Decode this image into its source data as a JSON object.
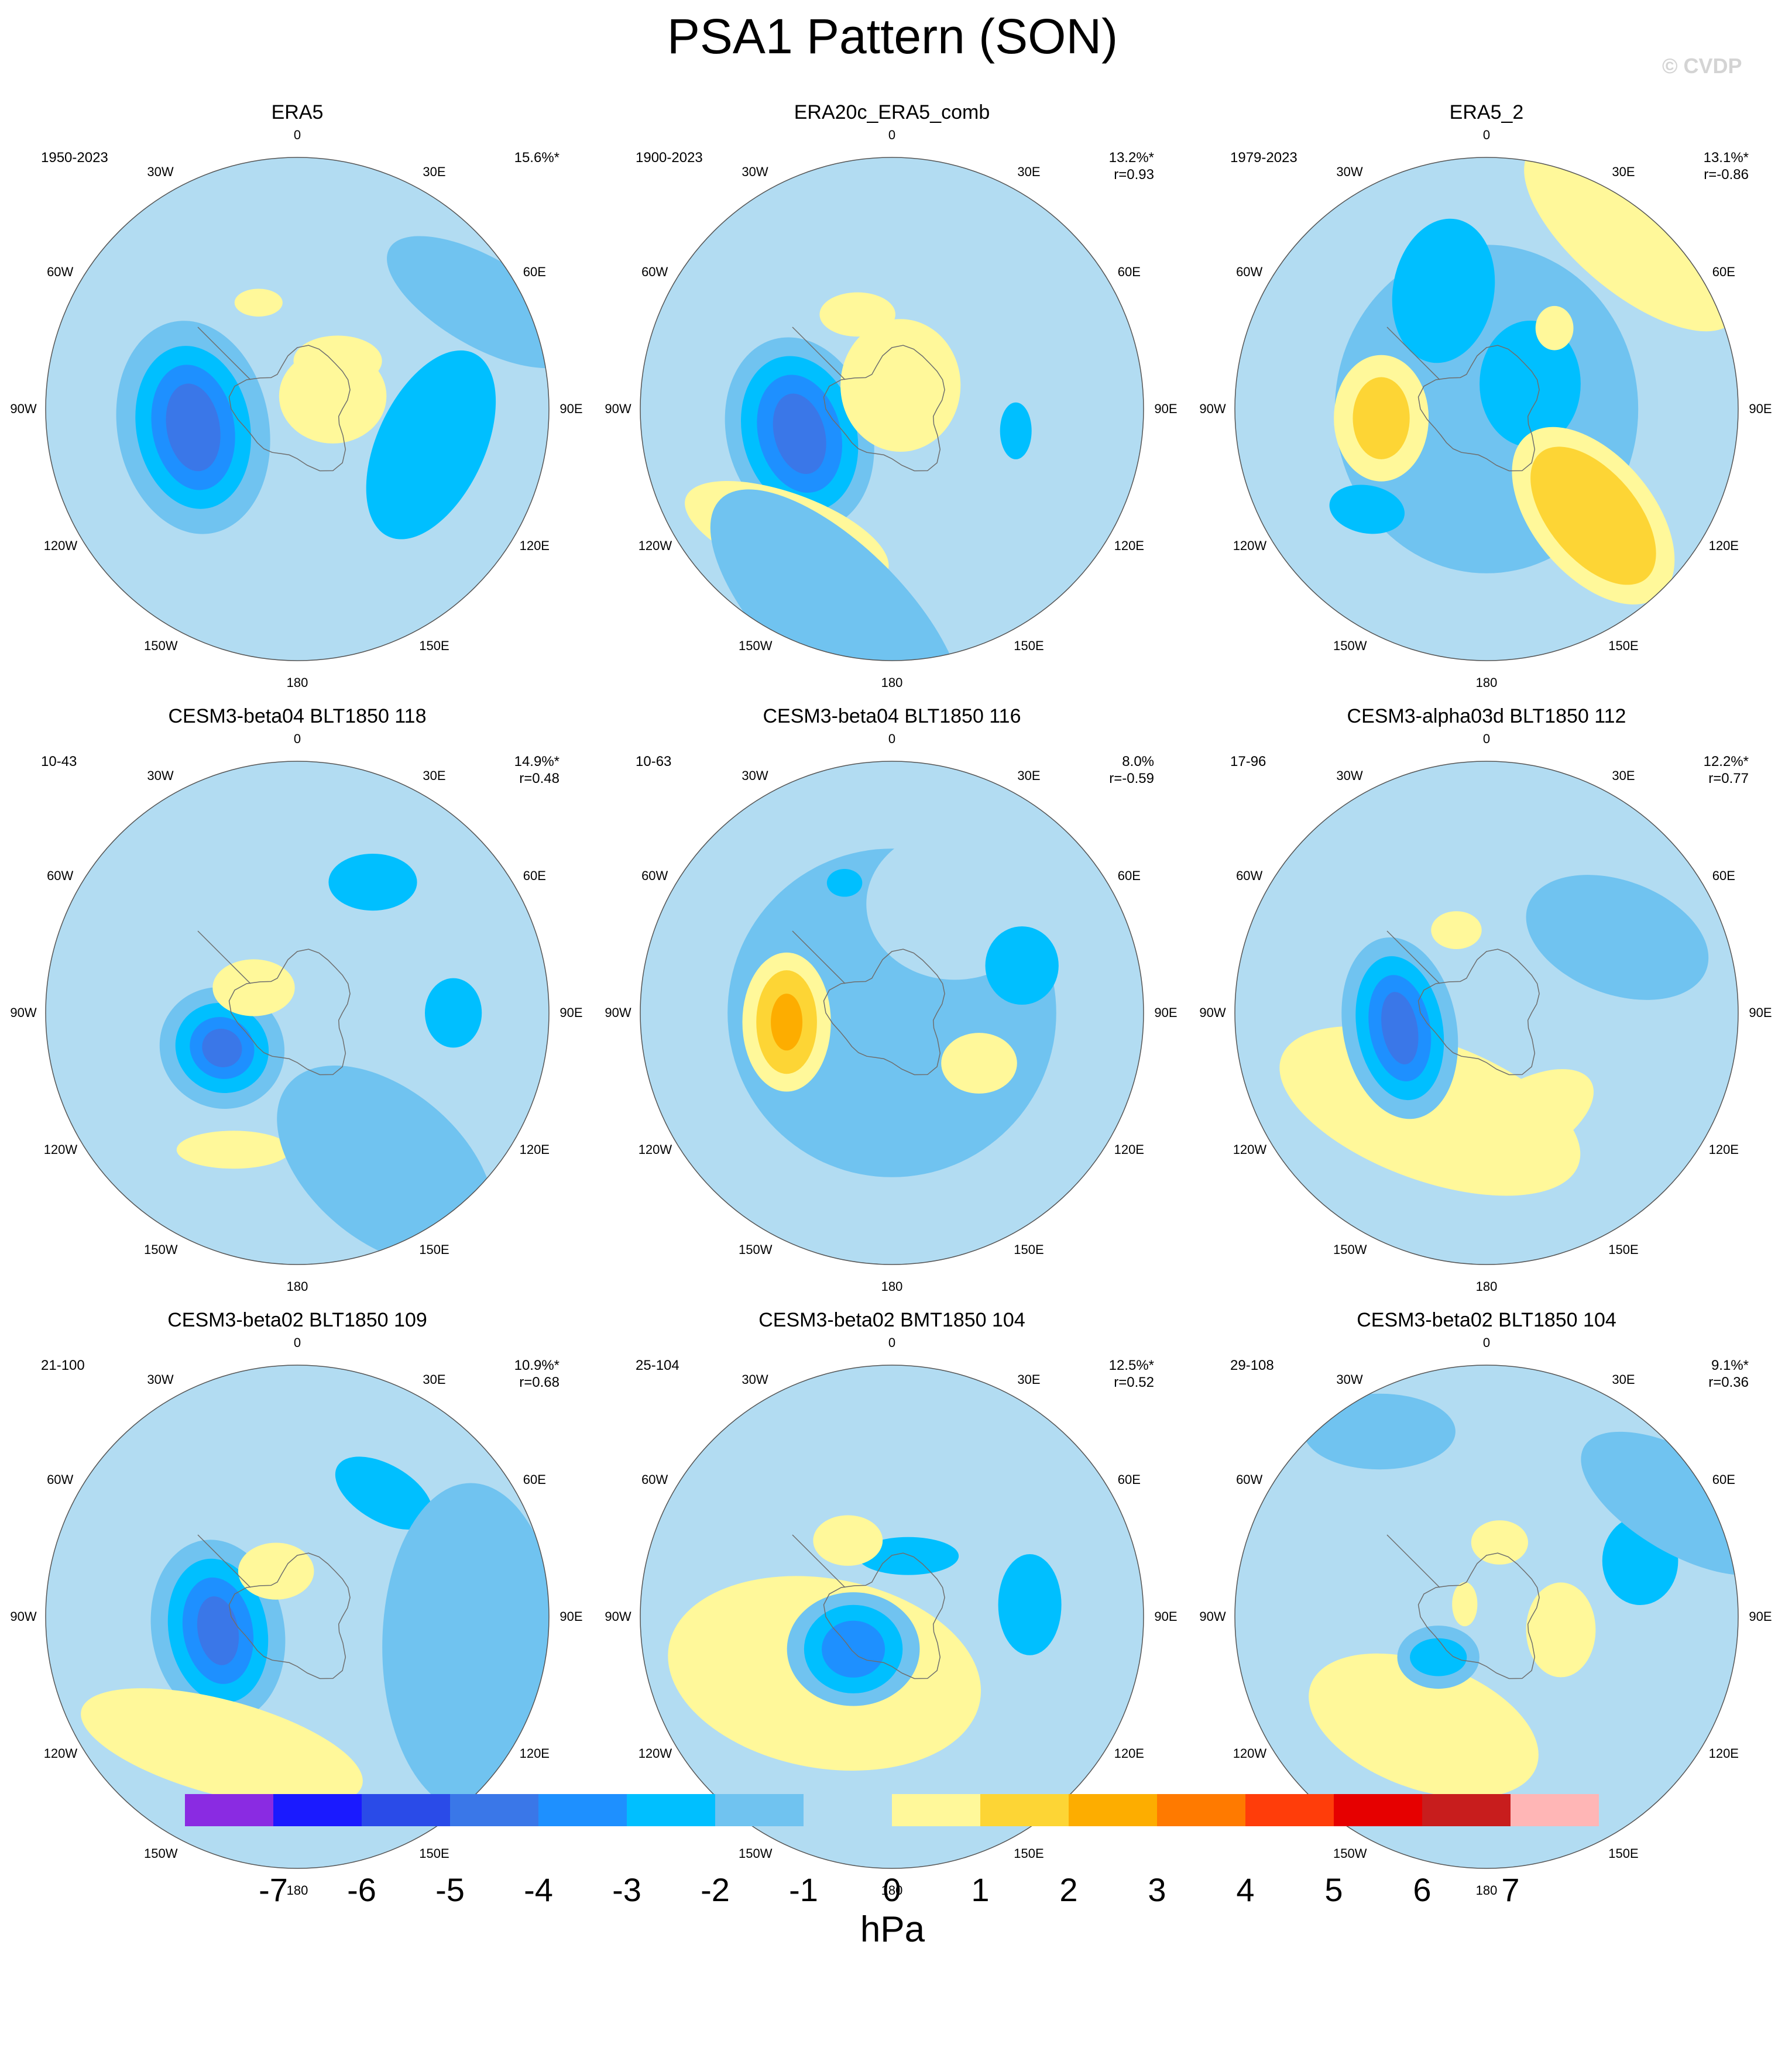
{
  "title": "PSA1 Pattern (SON)",
  "watermark": "© CVDP",
  "longitude_labels": [
    "0",
    "30E",
    "60E",
    "90E",
    "120E",
    "150E",
    "180",
    "150W",
    "120W",
    "90W",
    "60W",
    "30W"
  ],
  "chart_data": {
    "type": "polar-contour-map",
    "projection": "south polar stereographic",
    "variable": "sea level pressure pattern",
    "units": "hPa",
    "colorbar": {
      "ticks": [
        "-7",
        "-6",
        "-5",
        "-4",
        "-3",
        "-2",
        "-1",
        "0",
        "1",
        "2",
        "3",
        "4",
        "5",
        "6",
        "7"
      ],
      "colors": [
        "#8a2be2",
        "#1a1aff",
        "#2a4be8",
        "#3a77e8",
        "#1e90ff",
        "#00bfff",
        "#70c3f0",
        "#b2dcf2",
        "#fff89a",
        "#fdd535",
        "#fdad00",
        "#ff7a00",
        "#ff3d0a",
        "#e60000",
        "#c81d1d",
        "#ffb6b6"
      ]
    },
    "panels": [
      {
        "title": "ERA5",
        "period": "1950-2023",
        "pct": "15.6%*",
        "corr": "",
        "features": [
          {
            "lon": -100,
            "r": 0.42,
            "sx": 120,
            "sy": 170,
            "rot": -10,
            "val": -1
          },
          {
            "lon": -100,
            "r": 0.42,
            "sx": 90,
            "sy": 130,
            "rot": -10,
            "val": -2
          },
          {
            "lon": -100,
            "r": 0.42,
            "sx": 65,
            "sy": 100,
            "rot": -10,
            "val": -3
          },
          {
            "lon": -100,
            "r": 0.42,
            "sx": 42,
            "sy": 70,
            "rot": -10,
            "val": -4
          },
          {
            "lon": 70,
            "r": 0.15,
            "sx": 85,
            "sy": 75,
            "rot": 0,
            "val": 1
          },
          {
            "lon": -20,
            "r": 0.45,
            "sx": 38,
            "sy": 22,
            "rot": 0,
            "val": 1
          },
          {
            "lon": 60,
            "r": 0.85,
            "sx": 170,
            "sy": 70,
            "rot": 30,
            "val": -1
          },
          {
            "lon": 105,
            "r": 0.55,
            "sx": 85,
            "sy": 160,
            "rot": 25,
            "val": -2
          },
          {
            "lon": 40,
            "r": 0.25,
            "sx": 70,
            "sy": 40,
            "rot": 0,
            "val": 1
          }
        ]
      },
      {
        "title": "ERA20c_ERA5_comb",
        "period": "1900-2023",
        "pct": "13.2%*",
        "corr": "r=0.93",
        "features": [
          {
            "lon": -105,
            "r": 0.38,
            "sx": 115,
            "sy": 155,
            "rot": -15,
            "val": -1
          },
          {
            "lon": -105,
            "r": 0.38,
            "sx": 90,
            "sy": 125,
            "rot": -15,
            "val": -2
          },
          {
            "lon": -105,
            "r": 0.38,
            "sx": 65,
            "sy": 95,
            "rot": -15,
            "val": -3
          },
          {
            "lon": -105,
            "r": 0.38,
            "sx": 40,
            "sy": 65,
            "rot": -15,
            "val": -4
          },
          {
            "lon": -140,
            "r": 0.65,
            "sx": 170,
            "sy": 65,
            "rot": 20,
            "val": 1
          },
          {
            "lon": 20,
            "r": 0.1,
            "sx": 95,
            "sy": 105,
            "rot": 0,
            "val": 1
          },
          {
            "lon": -20,
            "r": 0.4,
            "sx": 60,
            "sy": 35,
            "rot": 0,
            "val": 1
          },
          {
            "lon": 100,
            "r": 0.5,
            "sx": 25,
            "sy": 45,
            "rot": 0,
            "val": -2
          },
          {
            "lon": 60,
            "r": 0.8,
            "sx": 80,
            "sy": 95,
            "rot": 0,
            "val": 0
          },
          {
            "lon": -165,
            "r": 0.85,
            "sx": 260,
            "sy": 110,
            "rot": 45,
            "val": -1
          }
        ]
      },
      {
        "title": "ERA5_2",
        "period": "1979-2023",
        "pct": "13.1%*",
        "corr": "r=-0.86",
        "features": [
          {
            "lon": 0,
            "r": 0.0,
            "sx": 240,
            "sy": 260,
            "rot": 0,
            "val": -1
          },
          {
            "lon": -20,
            "r": 0.5,
            "sx": 80,
            "sy": 115,
            "rot": 10,
            "val": -2
          },
          {
            "lon": 60,
            "r": 0.2,
            "sx": 80,
            "sy": 100,
            "rot": 0,
            "val": -2
          },
          {
            "lon": -95,
            "r": 0.42,
            "sx": 75,
            "sy": 100,
            "rot": 0,
            "val": 1
          },
          {
            "lon": -95,
            "r": 0.42,
            "sx": 45,
            "sy": 65,
            "rot": 0,
            "val": 2
          },
          {
            "lon": 135,
            "r": 0.6,
            "sx": 95,
            "sy": 165,
            "rot": -40,
            "val": 1
          },
          {
            "lon": 135,
            "r": 0.6,
            "sx": 70,
            "sy": 130,
            "rot": -40,
            "val": 2
          },
          {
            "lon": 40,
            "r": 0.42,
            "sx": 30,
            "sy": 35,
            "rot": 0,
            "val": 1
          },
          {
            "lon": -130,
            "r": 0.62,
            "sx": 60,
            "sy": 38,
            "rot": 10,
            "val": -2
          },
          {
            "lon": 40,
            "r": 0.9,
            "sx": 210,
            "sy": 90,
            "rot": 40,
            "val": 1
          }
        ]
      },
      {
        "title": "CESM3-beta04 BLT1850 118",
        "period": "10-43",
        "pct": "14.9%*",
        "corr": "r=0.48",
        "features": [
          {
            "lon": -115,
            "r": 0.33,
            "sx": 100,
            "sy": 95,
            "rot": 30,
            "val": -1
          },
          {
            "lon": -115,
            "r": 0.33,
            "sx": 75,
            "sy": 70,
            "rot": 30,
            "val": -2
          },
          {
            "lon": -115,
            "r": 0.33,
            "sx": 52,
            "sy": 48,
            "rot": 30,
            "val": -3
          },
          {
            "lon": -115,
            "r": 0.33,
            "sx": 32,
            "sy": 30,
            "rot": 30,
            "val": -4
          },
          {
            "lon": -60,
            "r": 0.2,
            "sx": 65,
            "sy": 45,
            "rot": 0,
            "val": 1
          },
          {
            "lon": 30,
            "r": 0.6,
            "sx": 70,
            "sy": 45,
            "rot": 0,
            "val": -2
          },
          {
            "lon": 90,
            "r": 0.62,
            "sx": 45,
            "sy": 55,
            "rot": 0,
            "val": -2
          },
          {
            "lon": -155,
            "r": 0.6,
            "sx": 90,
            "sy": 30,
            "rot": 0,
            "val": 1
          },
          {
            "lon": 150,
            "r": 0.7,
            "sx": 200,
            "sy": 120,
            "rot": 40,
            "val": -1
          }
        ]
      },
      {
        "title": "CESM3-beta04 BLT1850 116",
        "period": "10-63",
        "pct": "8.0%",
        "corr": "r=-0.59",
        "features": [
          {
            "lon": 0,
            "r": 0.0,
            "sx": 260,
            "sy": 260,
            "rot": 0,
            "val": -1
          },
          {
            "lon": 30,
            "r": 0.5,
            "sx": 140,
            "sy": 120,
            "rot": 0,
            "val": 0
          },
          {
            "lon": -95,
            "r": 0.42,
            "sx": 70,
            "sy": 110,
            "rot": 0,
            "val": 1
          },
          {
            "lon": -95,
            "r": 0.42,
            "sx": 48,
            "sy": 82,
            "rot": 0,
            "val": 2
          },
          {
            "lon": -95,
            "r": 0.42,
            "sx": 25,
            "sy": 45,
            "rot": 0,
            "val": 3
          },
          {
            "lon": 120,
            "r": 0.4,
            "sx": 60,
            "sy": 48,
            "rot": 0,
            "val": 1
          },
          {
            "lon": 70,
            "r": 0.55,
            "sx": 58,
            "sy": 62,
            "rot": 0,
            "val": -2
          },
          {
            "lon": -20,
            "r": 0.55,
            "sx": 28,
            "sy": 22,
            "rot": 0,
            "val": -2
          }
        ]
      },
      {
        "title": "CESM3-alpha03d BLT1850 112",
        "period": "17-96",
        "pct": "12.2%*",
        "corr": "r=0.77",
        "features": [
          {
            "lon": -150,
            "r": 0.45,
            "sx": 250,
            "sy": 110,
            "rot": 20,
            "val": 1
          },
          {
            "lon": -100,
            "r": 0.35,
            "sx": 90,
            "sy": 145,
            "rot": -10,
            "val": -1
          },
          {
            "lon": -100,
            "r": 0.35,
            "sx": 68,
            "sy": 115,
            "rot": -10,
            "val": -2
          },
          {
            "lon": -100,
            "r": 0.35,
            "sx": 48,
            "sy": 85,
            "rot": -10,
            "val": -3
          },
          {
            "lon": -100,
            "r": 0.35,
            "sx": 28,
            "sy": 58,
            "rot": -10,
            "val": -4
          },
          {
            "lon": -20,
            "r": 0.35,
            "sx": 40,
            "sy": 30,
            "rot": 0,
            "val": 1
          },
          {
            "lon": 160,
            "r": 0.45,
            "sx": 120,
            "sy": 60,
            "rot": -30,
            "val": 1
          },
          {
            "lon": 60,
            "r": 0.6,
            "sx": 150,
            "sy": 90,
            "rot": 20,
            "val": -1
          }
        ]
      },
      {
        "title": "CESM3-beta02 BLT1850 109",
        "period": "21-100",
        "pct": "10.9%*",
        "corr": "r=0.68",
        "features": [
          {
            "lon": -100,
            "r": 0.32,
            "sx": 105,
            "sy": 145,
            "rot": -10,
            "val": -1
          },
          {
            "lon": -100,
            "r": 0.32,
            "sx": 78,
            "sy": 115,
            "rot": -10,
            "val": -2
          },
          {
            "lon": -100,
            "r": 0.32,
            "sx": 55,
            "sy": 85,
            "rot": -10,
            "val": -3
          },
          {
            "lon": -100,
            "r": 0.32,
            "sx": 32,
            "sy": 55,
            "rot": -10,
            "val": -4
          },
          {
            "lon": -150,
            "r": 0.6,
            "sx": 230,
            "sy": 75,
            "rot": 15,
            "val": 1
          },
          {
            "lon": -25,
            "r": 0.2,
            "sx": 60,
            "sy": 45,
            "rot": 0,
            "val": 1
          },
          {
            "lon": 35,
            "r": 0.6,
            "sx": 85,
            "sy": 45,
            "rot": 30,
            "val": -2
          },
          {
            "lon": 100,
            "r": 0.7,
            "sx": 140,
            "sy": 260,
            "rot": 0,
            "val": -1
          }
        ]
      },
      {
        "title": "CESM3-beta02 BMT1850 104",
        "period": "25-104",
        "pct": "12.5%*",
        "corr": "r=0.52",
        "features": [
          {
            "lon": -130,
            "r": 0.35,
            "sx": 250,
            "sy": 150,
            "rot": 10,
            "val": 1
          },
          {
            "lon": -130,
            "r": 0.2,
            "sx": 105,
            "sy": 90,
            "rot": 0,
            "val": -1
          },
          {
            "lon": -130,
            "r": 0.2,
            "sx": 78,
            "sy": 70,
            "rot": 0,
            "val": -2
          },
          {
            "lon": -130,
            "r": 0.2,
            "sx": 50,
            "sy": 45,
            "rot": 0,
            "val": -3
          },
          {
            "lon": 15,
            "r": 0.25,
            "sx": 80,
            "sy": 30,
            "rot": 0,
            "val": -2
          },
          {
            "lon": 85,
            "r": 0.55,
            "sx": 50,
            "sy": 80,
            "rot": 0,
            "val": -2
          },
          {
            "lon": -30,
            "r": 0.35,
            "sx": 55,
            "sy": 40,
            "rot": 0,
            "val": 1
          },
          {
            "lon": 0,
            "r": 0.82,
            "sx": 100,
            "sy": 50,
            "rot": 0,
            "val": 0
          }
        ]
      },
      {
        "title": "CESM3-beta02 BLT1850 104",
        "period": "29-108",
        "pct": "9.1%*",
        "corr": "r=0.36",
        "features": [
          {
            "lon": -150,
            "r": 0.5,
            "sx": 190,
            "sy": 100,
            "rot": 20,
            "val": 1
          },
          {
            "lon": -130,
            "r": 0.25,
            "sx": 65,
            "sy": 50,
            "rot": 0,
            "val": -1
          },
          {
            "lon": -130,
            "r": 0.25,
            "sx": 45,
            "sy": 30,
            "rot": 0,
            "val": -2
          },
          {
            "lon": 100,
            "r": 0.3,
            "sx": 55,
            "sy": 75,
            "rot": 0,
            "val": 1
          },
          {
            "lon": 70,
            "r": 0.65,
            "sx": 60,
            "sy": 70,
            "rot": 0,
            "val": -2
          },
          {
            "lon": 10,
            "r": 0.3,
            "sx": 45,
            "sy": 35,
            "rot": 0,
            "val": 1
          },
          {
            "lon": -60,
            "r": 0.1,
            "sx": 20,
            "sy": 35,
            "rot": 0,
            "val": 1
          },
          {
            "lon": 60,
            "r": 0.9,
            "sx": 180,
            "sy": 80,
            "rot": 30,
            "val": -1
          },
          {
            "lon": -30,
            "r": 0.85,
            "sx": 120,
            "sy": 60,
            "rot": 0,
            "val": -1
          }
        ]
      }
    ]
  }
}
